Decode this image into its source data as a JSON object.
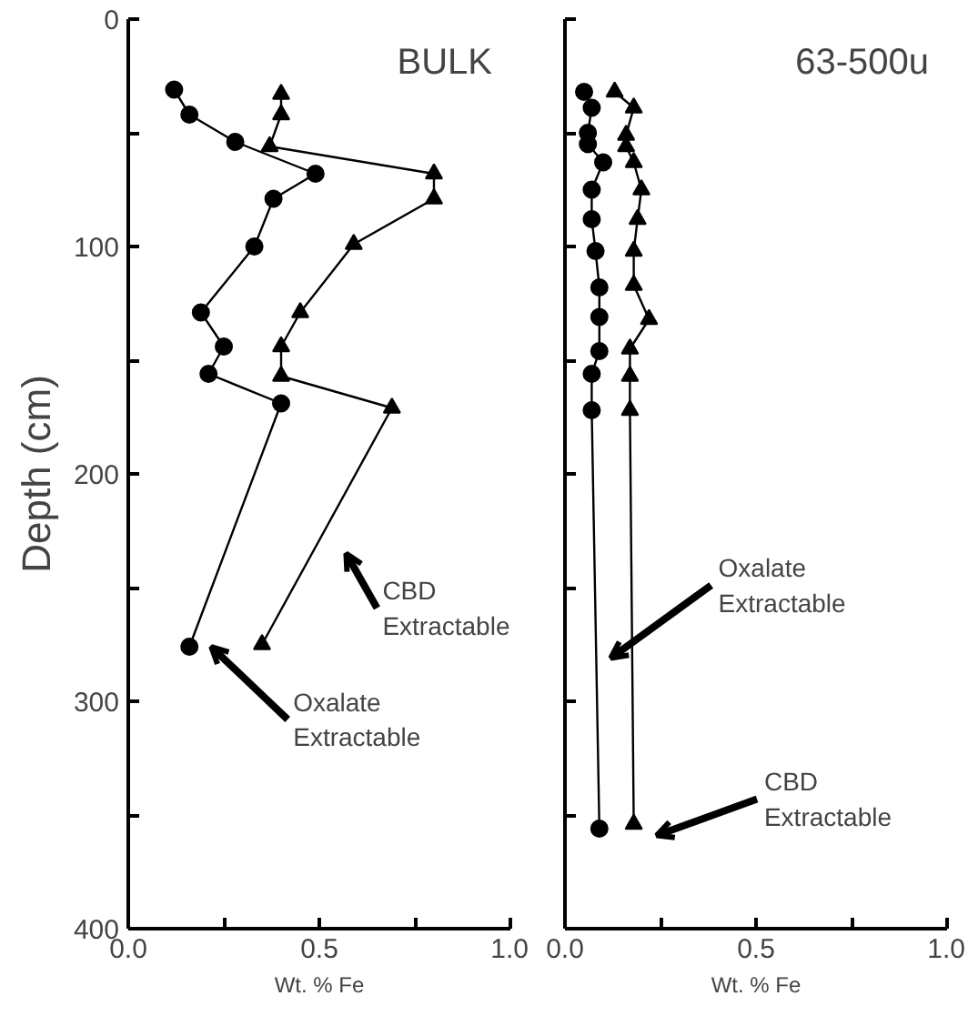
{
  "chart_data": [
    {
      "type": "line",
      "title": "BULK",
      "xlabel": "Wt. % Fe",
      "ylabel": "Depth (cm)",
      "xlim": [
        0,
        1.0
      ],
      "ylim": [
        400,
        0
      ],
      "xticks": [
        {
          "value": 0,
          "label": "0.0"
        },
        {
          "value": 0.25,
          "label": null
        },
        0.5,
        {
          "value": 0.75,
          "label": null
        },
        {
          "value": 1.0,
          "label": "1.0"
        }
      ],
      "yticks": [
        0,
        {
          "value": 50,
          "label": null
        },
        100,
        {
          "value": 150,
          "label": null
        },
        200,
        {
          "value": 250,
          "label": null
        },
        300,
        {
          "value": 350,
          "label": null
        },
        400
      ],
      "grid": false,
      "line_style": "solid",
      "series": [
        {
          "name": "Oxalate Extractable",
          "color": "#000000",
          "marker": "circle",
          "x": [
            0.12,
            0.16,
            0.28,
            0.49,
            0.38,
            0.33,
            0.19,
            0.25,
            0.21,
            0.4,
            0.16
          ],
          "values": [
            31,
            42,
            54,
            68,
            79,
            100,
            129,
            144,
            156,
            169,
            276
          ]
        },
        {
          "name": "CBD Extractable",
          "color": "#000000",
          "marker": "triangle",
          "x": [
            0.4,
            0.4,
            0.37,
            0.8,
            0.8,
            0.59,
            0.45,
            0.4,
            0.4,
            0.69,
            0.35
          ],
          "values": [
            33,
            42,
            56,
            68,
            79,
            99,
            129,
            144,
            157,
            171,
            275
          ]
        }
      ]
    },
    {
      "type": "line",
      "title": "63-500u",
      "xlabel": "Wt. % Fe",
      "xlim": [
        0,
        1.0
      ],
      "ylim": [
        400,
        0
      ],
      "xticks": [
        {
          "value": 0,
          "label": "0.0"
        },
        {
          "value": 0.25,
          "label": null
        },
        0.5,
        {
          "value": 0.75,
          "label": null
        },
        {
          "value": 1.0,
          "label": "1.0"
        }
      ],
      "yticks": [
        0,
        50,
        100,
        150,
        200,
        250,
        300,
        350,
        400
      ],
      "tick_labels": "x",
      "grid": false,
      "line_style": "solid",
      "series": [
        {
          "name": "Oxalate Extractable",
          "color": "#000000",
          "marker": "circle",
          "x": [
            0.05,
            0.07,
            0.06,
            0.06,
            0.1,
            0.07,
            0.07,
            0.08,
            0.09,
            0.09,
            0.09,
            0.07,
            0.07,
            0.09
          ],
          "values": [
            32,
            39,
            50,
            55,
            63,
            75,
            88,
            102,
            118,
            131,
            146,
            156,
            172,
            356
          ]
        },
        {
          "name": "CBD Extractable",
          "color": "#000000",
          "marker": "triangle",
          "x": [
            0.13,
            0.18,
            0.16,
            0.16,
            0.18,
            0.2,
            0.19,
            0.18,
            0.18,
            0.22,
            0.17,
            0.17,
            0.17,
            0.18
          ],
          "values": [
            32,
            39,
            51,
            56,
            63,
            75,
            88,
            102,
            117,
            132,
            145,
            157,
            172,
            354
          ]
        }
      ]
    }
  ]
}
